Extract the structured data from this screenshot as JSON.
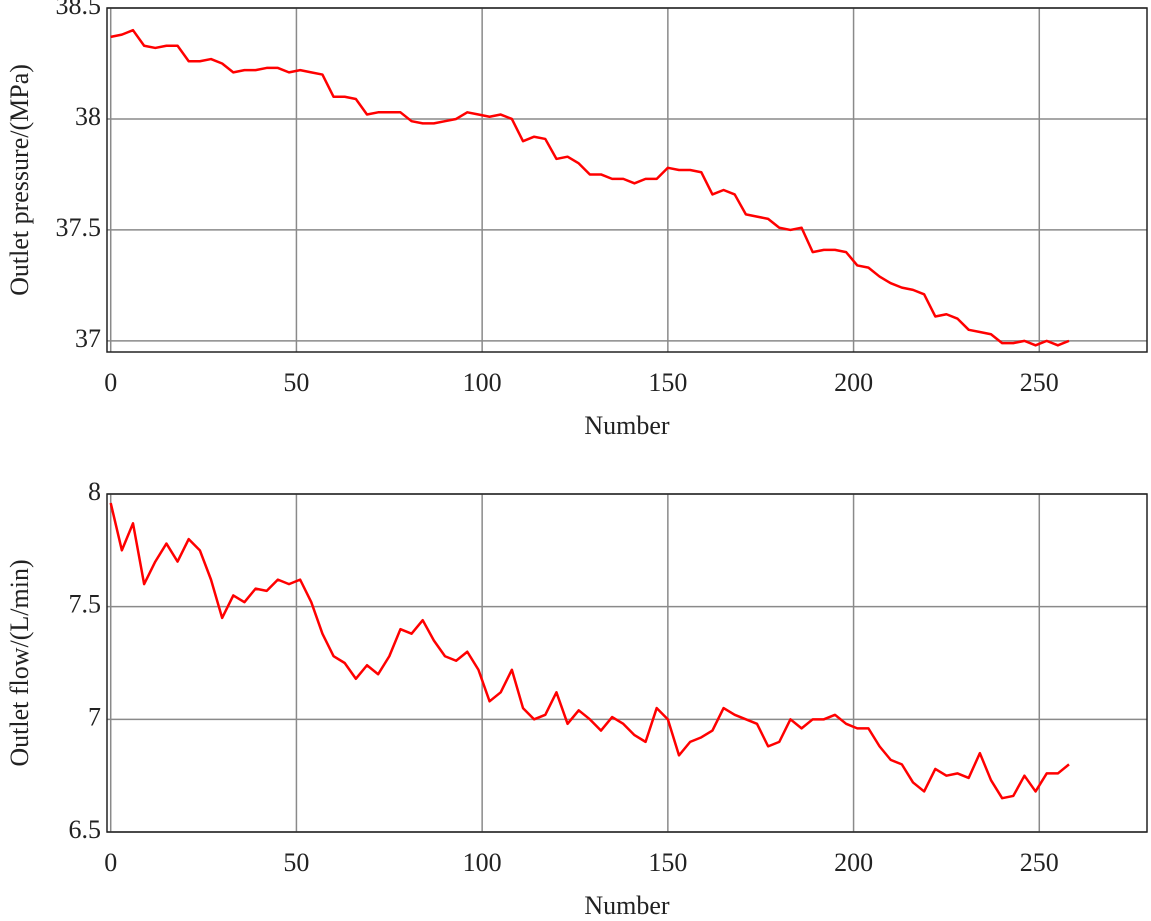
{
  "chart_data": [
    {
      "type": "line",
      "xlabel": "Number",
      "ylabel": "Outlet pressure/(MPa)",
      "x": [
        0,
        3,
        6,
        9,
        12,
        15,
        18,
        21,
        24,
        27,
        30,
        33,
        36,
        39,
        42,
        45,
        48,
        51,
        54,
        57,
        60,
        63,
        66,
        69,
        72,
        75,
        78,
        81,
        84,
        87,
        90,
        93,
        96,
        99,
        102,
        105,
        108,
        111,
        114,
        117,
        120,
        123,
        126,
        129,
        132,
        135,
        138,
        141,
        144,
        147,
        150,
        153,
        156,
        159,
        162,
        165,
        168,
        171,
        174,
        177,
        180,
        183,
        186,
        189,
        192,
        195,
        198,
        201,
        204,
        207,
        210,
        213,
        216,
        219,
        222,
        225,
        228,
        231,
        234,
        237,
        240,
        243,
        246,
        249,
        252,
        255,
        258
      ],
      "series": [
        {
          "color": "#ff0000",
          "values": [
            38.37,
            38.38,
            38.4,
            38.33,
            38.32,
            38.33,
            38.33,
            38.26,
            38.26,
            38.27,
            38.25,
            38.21,
            38.22,
            38.22,
            38.23,
            38.23,
            38.21,
            38.22,
            38.21,
            38.2,
            38.1,
            38.1,
            38.09,
            38.02,
            38.03,
            38.03,
            38.03,
            37.99,
            37.98,
            37.98,
            37.99,
            38.0,
            38.03,
            38.02,
            38.01,
            38.02,
            38.0,
            37.9,
            37.92,
            37.91,
            37.82,
            37.83,
            37.8,
            37.75,
            37.75,
            37.73,
            37.73,
            37.71,
            37.73,
            37.73,
            37.78,
            37.77,
            37.77,
            37.76,
            37.66,
            37.68,
            37.66,
            37.57,
            37.56,
            37.55,
            37.51,
            37.5,
            37.51,
            37.4,
            37.41,
            37.41,
            37.4,
            37.34,
            37.33,
            37.29,
            37.26,
            37.24,
            37.23,
            37.21,
            37.11,
            37.12,
            37.1,
            37.05,
            37.04,
            37.03,
            36.99,
            36.99,
            37.0,
            36.98,
            37.0,
            36.98,
            37.0
          ]
        }
      ],
      "xlim": [
        -1,
        279
      ],
      "xticks": [
        0,
        50,
        100,
        150,
        200,
        250
      ],
      "ylim": [
        36.95,
        38.5
      ],
      "yticks": [
        37,
        37.5,
        38,
        38.5
      ],
      "grid": true
    },
    {
      "type": "line",
      "xlabel": "Number",
      "ylabel": "Outlet flow/(L/min)",
      "x": [
        0,
        3,
        6,
        9,
        12,
        15,
        18,
        21,
        24,
        27,
        30,
        33,
        36,
        39,
        42,
        45,
        48,
        51,
        54,
        57,
        60,
        63,
        66,
        69,
        72,
        75,
        78,
        81,
        84,
        87,
        90,
        93,
        96,
        99,
        102,
        105,
        108,
        111,
        114,
        117,
        120,
        123,
        126,
        129,
        132,
        135,
        138,
        141,
        144,
        147,
        150,
        153,
        156,
        159,
        162,
        165,
        168,
        171,
        174,
        177,
        180,
        183,
        186,
        189,
        192,
        195,
        198,
        201,
        204,
        207,
        210,
        213,
        216,
        219,
        222,
        225,
        228,
        231,
        234,
        237,
        240,
        243,
        246,
        249,
        252,
        255,
        258
      ],
      "series": [
        {
          "color": "#ff0000",
          "values": [
            7.96,
            7.75,
            7.87,
            7.6,
            7.7,
            7.78,
            7.7,
            7.8,
            7.75,
            7.62,
            7.45,
            7.55,
            7.52,
            7.58,
            7.57,
            7.62,
            7.6,
            7.62,
            7.52,
            7.38,
            7.28,
            7.25,
            7.18,
            7.24,
            7.2,
            7.28,
            7.4,
            7.38,
            7.44,
            7.35,
            7.28,
            7.26,
            7.3,
            7.22,
            7.08,
            7.12,
            7.22,
            7.05,
            7.0,
            7.02,
            7.12,
            6.98,
            7.04,
            7.0,
            6.95,
            7.01,
            6.98,
            6.93,
            6.9,
            7.05,
            7.0,
            6.84,
            6.9,
            6.92,
            6.95,
            7.05,
            7.02,
            7.0,
            6.98,
            6.88,
            6.9,
            7.0,
            6.96,
            7.0,
            7.0,
            7.02,
            6.98,
            6.96,
            6.96,
            6.88,
            6.82,
            6.8,
            6.72,
            6.68,
            6.78,
            6.75,
            6.76,
            6.74,
            6.85,
            6.73,
            6.65,
            6.66,
            6.75,
            6.68,
            6.76,
            6.76,
            6.8
          ]
        }
      ],
      "xlim": [
        -1,
        279
      ],
      "xticks": [
        0,
        50,
        100,
        150,
        200,
        250
      ],
      "ylim": [
        6.5,
        8
      ],
      "yticks": [
        6.5,
        7,
        7.5,
        8
      ],
      "grid": true
    }
  ]
}
